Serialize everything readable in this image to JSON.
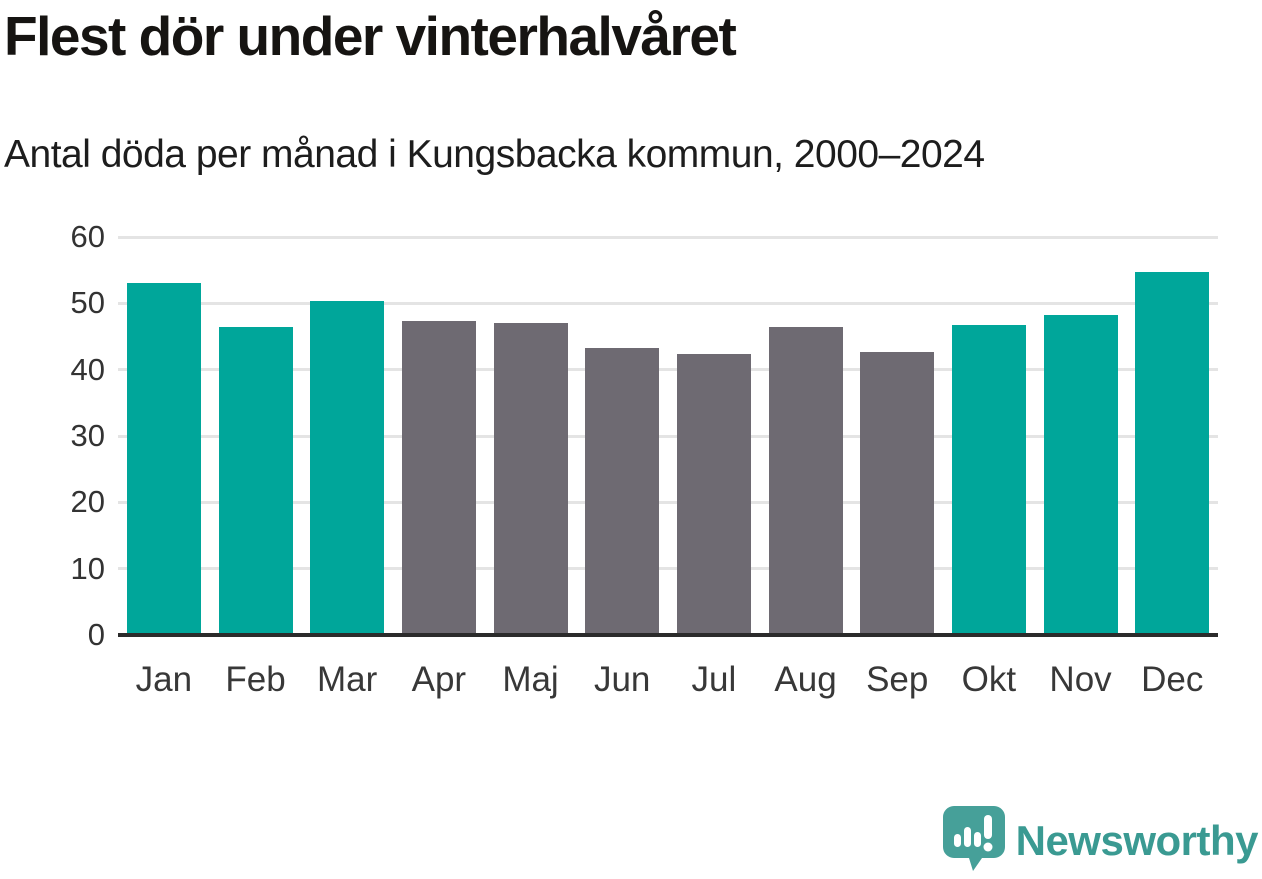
{
  "header": {
    "title": "Flest dör under vinterhalvåret",
    "subtitle": "Antal döda per månad i Kungsbacka kommun, 2000–2024"
  },
  "chart_data": {
    "type": "bar",
    "title": "Flest dör under vinterhalvåret",
    "subtitle": "Antal döda per månad i Kungsbacka kommun, 2000–2024",
    "categories": [
      "Jan",
      "Feb",
      "Mar",
      "Apr",
      "Maj",
      "Jun",
      "Jul",
      "Aug",
      "Sep",
      "Okt",
      "Nov",
      "Dec"
    ],
    "values": [
      53.1,
      46.4,
      50.3,
      47.4,
      47.1,
      43.2,
      42.4,
      46.4,
      42.7,
      46.7,
      48.3,
      54.7
    ],
    "highlighted": [
      true,
      true,
      true,
      false,
      false,
      false,
      false,
      false,
      false,
      true,
      true,
      true
    ],
    "xlabel": "",
    "ylabel": "",
    "ylim": [
      0,
      60
    ],
    "yticks": [
      0,
      10,
      20,
      30,
      40,
      50,
      60
    ],
    "grid": "horizontal-only",
    "legend": "none",
    "colors": {
      "highlight": "#00a69a",
      "base": "#6e6a72",
      "gridline": "#e4e4e4",
      "axis_line": "#2b2b2b",
      "tick_text": "#333333"
    }
  },
  "footer": {
    "logo_text": "Newsworthy",
    "logo_text_color": "#3a9a92",
    "logo_mark_color": "#46a099",
    "logo_mark_icon": "bar-chart-exclamation-speech-bubble-icon"
  }
}
